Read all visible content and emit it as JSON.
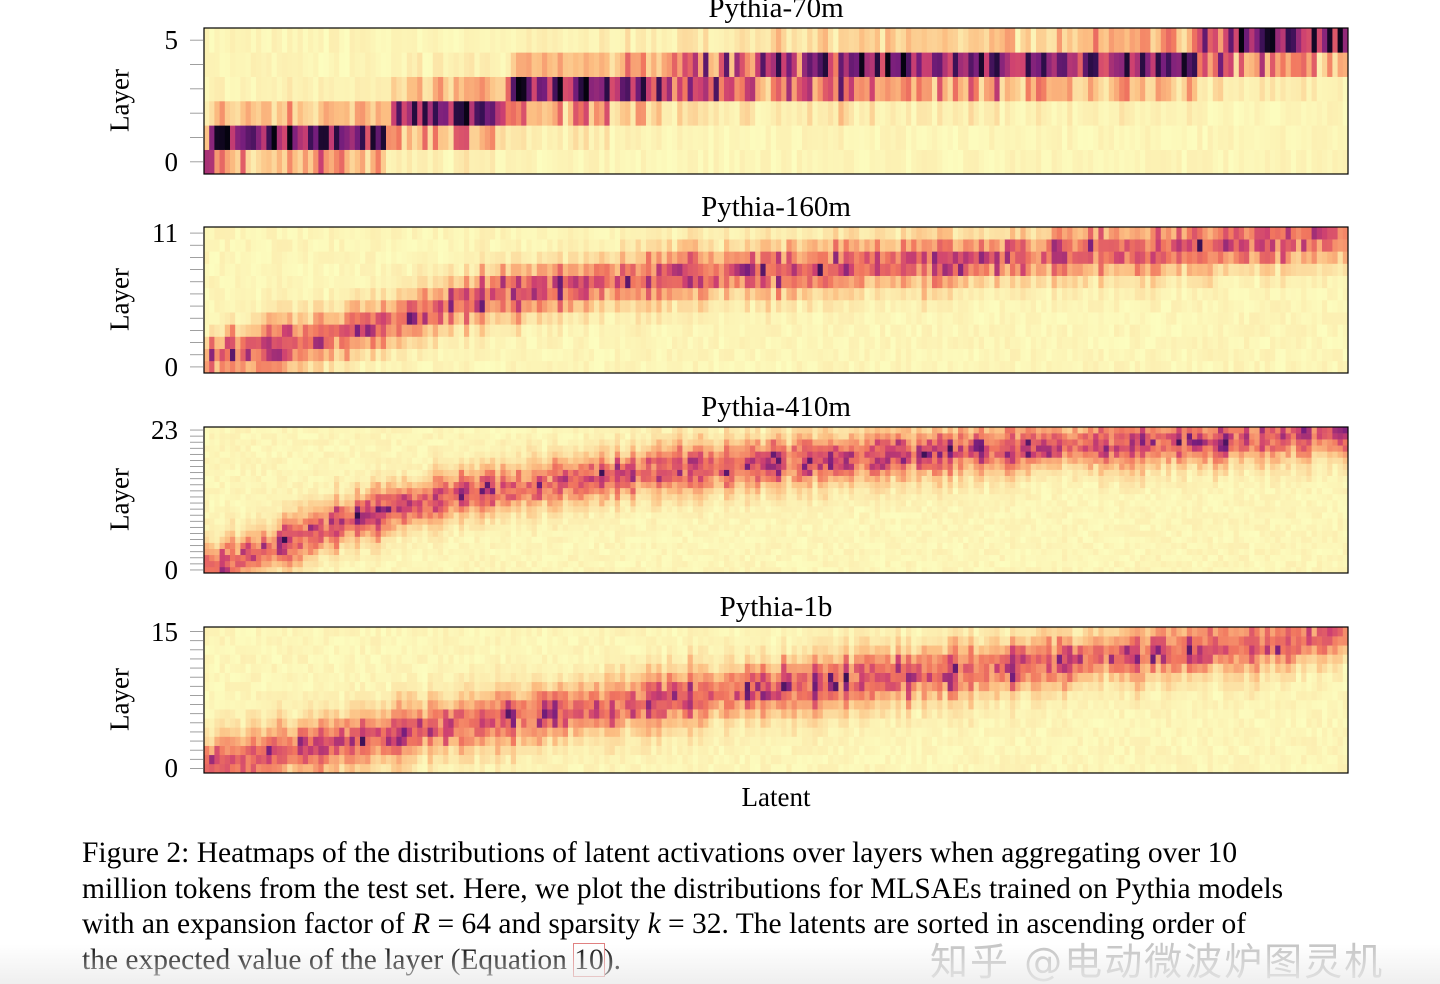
{
  "chart_data": [
    {
      "type": "heatmap",
      "title": "Pythia-70m",
      "ylabel": "Layer",
      "xlabel": "",
      "n_layers": 6,
      "y_ticks": [
        "0",
        "5"
      ],
      "expected_layer_by_latent": [
        [
          0,
          0
        ],
        [
          0.012,
          1
        ],
        [
          0.16,
          1.1
        ],
        [
          0.17,
          2
        ],
        [
          0.26,
          2.1
        ],
        [
          0.27,
          3
        ],
        [
          0.37,
          3.2
        ],
        [
          0.5,
          3.7
        ],
        [
          0.7,
          4
        ],
        [
          0.86,
          4.2
        ],
        [
          0.92,
          5
        ],
        [
          1,
          5
        ]
      ],
      "spread": 0.55
    },
    {
      "type": "heatmap",
      "title": "Pythia-160m",
      "ylabel": "Layer",
      "xlabel": "",
      "n_layers": 12,
      "y_ticks": [
        "0",
        "11"
      ],
      "expected_layer_by_latent": [
        [
          0,
          0
        ],
        [
          0.012,
          1
        ],
        [
          0.08,
          2
        ],
        [
          0.18,
          4
        ],
        [
          0.26,
          6
        ],
        [
          0.4,
          7.5
        ],
        [
          0.6,
          8.5
        ],
        [
          0.75,
          9.3
        ],
        [
          0.9,
          10
        ],
        [
          1,
          11
        ]
      ],
      "spread": 1.3
    },
    {
      "type": "heatmap",
      "title": "Pythia-410m",
      "ylabel": "Layer",
      "xlabel": "",
      "n_layers": 24,
      "y_ticks": [
        "0",
        "23"
      ],
      "expected_layer_by_latent": [
        [
          0,
          0
        ],
        [
          0.05,
          3
        ],
        [
          0.12,
          8
        ],
        [
          0.22,
          12.5
        ],
        [
          0.4,
          16.5
        ],
        [
          0.65,
          19.5
        ],
        [
          0.9,
          21.5
        ],
        [
          1,
          23
        ]
      ],
      "spread": 2.6
    },
    {
      "type": "heatmap",
      "title": "Pythia-1b",
      "ylabel": "Layer",
      "xlabel": "",
      "n_layers": 16,
      "y_ticks": [
        "0",
        "15"
      ],
      "expected_layer_by_latent": [
        [
          0,
          0
        ],
        [
          0.05,
          1.5
        ],
        [
          0.2,
          4.5
        ],
        [
          0.4,
          7.5
        ],
        [
          0.6,
          10
        ],
        [
          0.8,
          12.5
        ],
        [
          0.95,
          14
        ],
        [
          1,
          15
        ]
      ],
      "spread": 1.9
    }
  ],
  "xlabel": "Latent",
  "caption": {
    "line1": "Figure 2: Heatmaps of the distributions of latent activations over layers when aggregating over 10",
    "line2": "million tokens from the test set. Here, we plot the distributions for MLSAEs trained on Pythia models",
    "line3a": "with an expansion factor of ",
    "R": "R",
    "line3b": " = 64 and sparsity ",
    "k": "k",
    "line3c": " = 32. The latents are sorted in ascending order of",
    "line4a": "the expected value of the layer (Equation ",
    "eqref": "10",
    "line4b": ")."
  },
  "watermark": "知乎 @电动微波炉图灵机"
}
